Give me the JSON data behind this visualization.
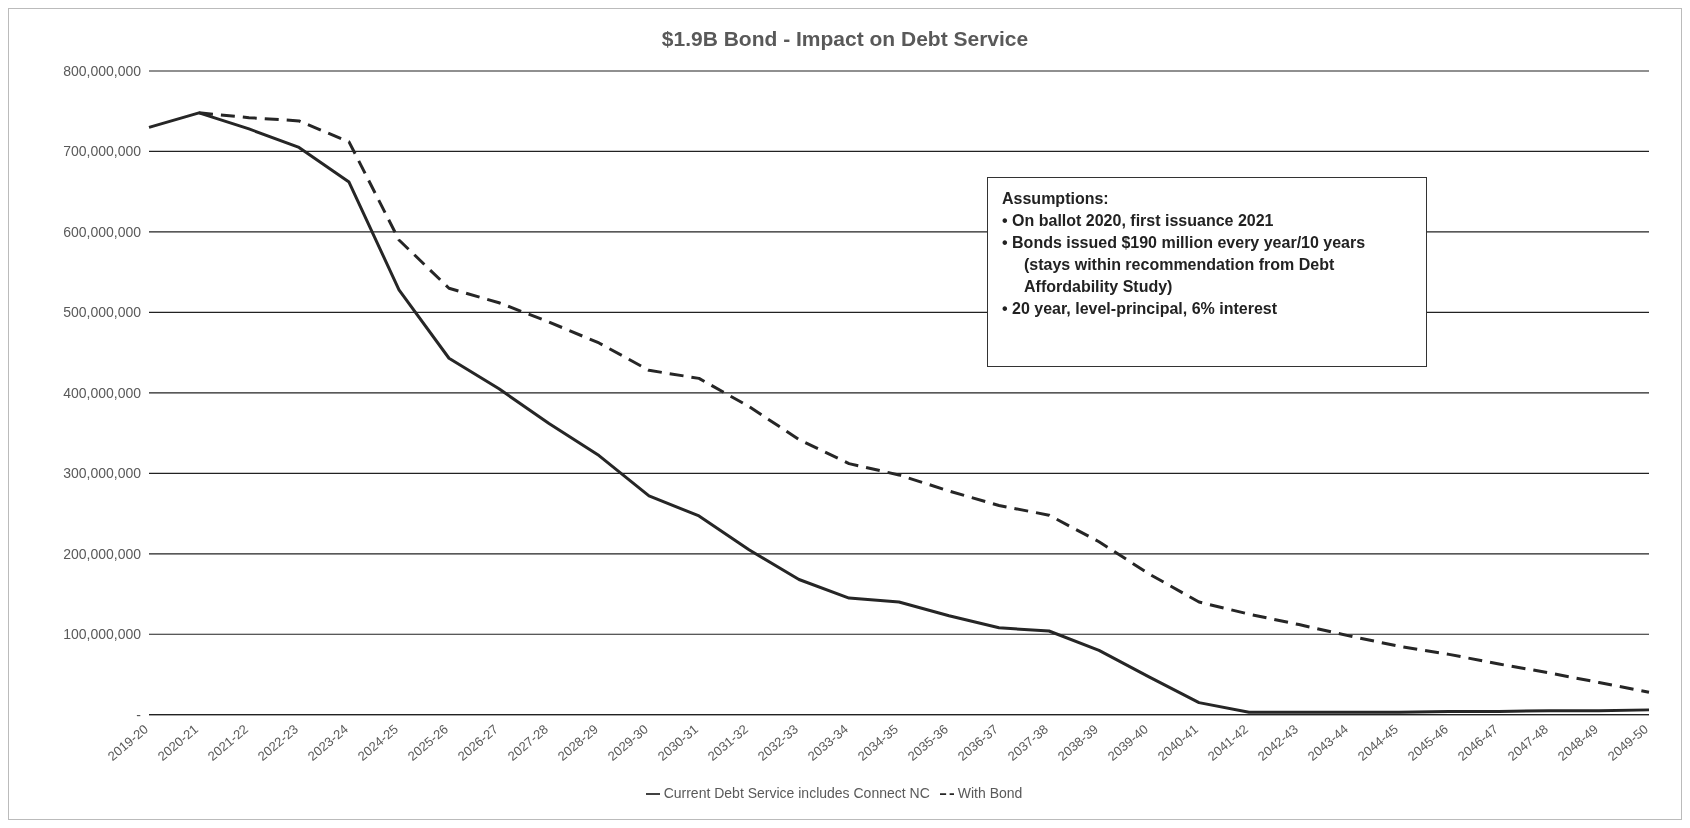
{
  "chart_data": {
    "type": "line",
    "title": "$1.9B Bond - Impact on Debt Service",
    "categories": [
      "2019-20",
      "2020-21",
      "2021-22",
      "2022-23",
      "2023-24",
      "2024-25",
      "2025-26",
      "2026-27",
      "2027-28",
      "2028-29",
      "2029-30",
      "2030-31",
      "2031-32",
      "2032-33",
      "2033-34",
      "2034-35",
      "2035-36",
      "2036-37",
      "2037-38",
      "2038-39",
      "2039-40",
      "2040-41",
      "2041-42",
      "2042-43",
      "2043-44",
      "2044-45",
      "2045-46",
      "2046-47",
      "2047-48",
      "2048-49",
      "2049-50"
    ],
    "series": [
      {
        "name": "Current Debt Service includes Connect NC",
        "color": "#262626",
        "line_style": "solid",
        "values": [
          730000000,
          748000000,
          728000000,
          705000000,
          662000000,
          528000000,
          443000000,
          405000000,
          362000000,
          322000000,
          272000000,
          247000000,
          205000000,
          168000000,
          145000000,
          140000000,
          123000000,
          108000000,
          104000000,
          80000000,
          47000000,
          15000000,
          3000000,
          3000000,
          3000000,
          3000000,
          4000000,
          4000000,
          5000000,
          5000000,
          6000000
        ]
      },
      {
        "name": "With Bond",
        "color": "#262626",
        "line_style": "dashed",
        "values": [
          null,
          748000000,
          742000000,
          738000000,
          712000000,
          590000000,
          530000000,
          512000000,
          488000000,
          462000000,
          428000000,
          418000000,
          383000000,
          342000000,
          312000000,
          298000000,
          278000000,
          260000000,
          248000000,
          215000000,
          175000000,
          140000000,
          125000000,
          112000000,
          98000000,
          85000000,
          75000000,
          63000000,
          52000000,
          40000000,
          28000000
        ]
      }
    ],
    "ylim": [
      0,
      800000000
    ],
    "yticks": [
      {
        "value": 0,
        "label": "-"
      },
      {
        "value": 100000000,
        "label": "100,000,000"
      },
      {
        "value": 200000000,
        "label": "200,000,000"
      },
      {
        "value": 300000000,
        "label": "300,000,000"
      },
      {
        "value": 400000000,
        "label": "400,000,000"
      },
      {
        "value": 500000000,
        "label": "500,000,000"
      },
      {
        "value": 600000000,
        "label": "600,000,000"
      },
      {
        "value": 700000000,
        "label": "700,000,000"
      },
      {
        "value": 800000000,
        "label": "800,000,000"
      }
    ],
    "grid": "y",
    "legend": "bottom",
    "marker": "none",
    "annotations": [
      "Assumptions:",
      "• On ballot 2020, first issuance 2021",
      "• Bonds issued $190 million every year/10 years (stays within recommendation from Debt Affordability Study)",
      "• 20 year, level-principal, 6% interest"
    ]
  }
}
